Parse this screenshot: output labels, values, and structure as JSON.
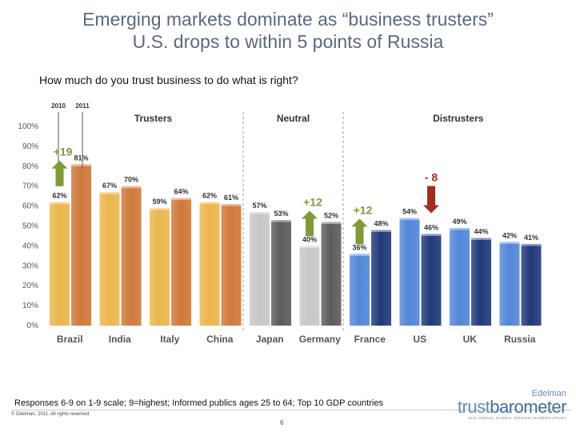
{
  "title": {
    "line1": "Emerging markets dominate as “business trusters”",
    "line2": "U.S. drops to within 5 points of Russia"
  },
  "question": "How much do you trust business to do what is right?",
  "footnote": "Responses 6-9 on 1-9 scale; 9=highest; Informed publics ages 25 to 64; Top 10 GDP countries",
  "copyright": "© Edelman, 2011. All rights reserved.",
  "page_number": "6",
  "logo": {
    "brand": "Edelman",
    "word_part1": "trust",
    "word_part2": "barometer",
    "tagline": "2011 ANNUAL GLOBAL OPINION LEADERS STUDY"
  },
  "colors": {
    "trusters_2010": "#eab64d",
    "trusters_2011": "#d0793a",
    "neutral_2010": "#c7c7c7",
    "neutral_2011": "#5c5c5c",
    "distrusters_2010": "#5187d6",
    "distrusters_2011": "#203a78",
    "change_up": "#7f9a36",
    "change_down": "#a32e1f"
  },
  "chart_data": {
    "type": "bar",
    "title": "How much do you trust business to do what is right?",
    "xlabel": "",
    "ylabel": "",
    "ylim": [
      0,
      100
    ],
    "yticks": [
      "0%",
      "10%",
      "20%",
      "30%",
      "40%",
      "50%",
      "60%",
      "70%",
      "80%",
      "90%",
      "100%"
    ],
    "grid": false,
    "legend": [
      "2010",
      "2011"
    ],
    "categories": [
      "Brazil",
      "India",
      "Italy",
      "China",
      "Japan",
      "Germany",
      "France",
      "US",
      "UK",
      "Russia"
    ],
    "series": [
      {
        "name": "2010",
        "values": [
          62,
          67,
          59,
          62,
          57,
          40,
          36,
          54,
          49,
          42
        ]
      },
      {
        "name": "2011",
        "values": [
          81,
          70,
          64,
          61,
          53,
          52,
          48,
          46,
          44,
          41
        ]
      }
    ],
    "value_labels": {
      "2010": [
        "62%",
        "67%",
        "59%",
        "62%",
        "57%",
        "40%",
        "36%",
        "54%",
        "49%",
        "42%"
      ],
      "2011": [
        "81%",
        "70%",
        "64%",
        "61%",
        "53%",
        "52%",
        "48%",
        "46%",
        "44%",
        "41%"
      ]
    },
    "groups": [
      {
        "name": "Trusters",
        "categories": [
          "Brazil",
          "India",
          "Italy",
          "China"
        ]
      },
      {
        "name": "Neutral",
        "categories": [
          "Japan",
          "Germany"
        ]
      },
      {
        "name": "Distrusters",
        "categories": [
          "France",
          "US",
          "UK",
          "Russia"
        ]
      }
    ],
    "annotations": [
      {
        "category": "Brazil",
        "label": "+19",
        "direction": "up"
      },
      {
        "category": "Germany",
        "label": "+12",
        "direction": "up"
      },
      {
        "category": "France",
        "label": "+12",
        "direction": "up"
      },
      {
        "category": "US",
        "label": "- 8",
        "direction": "down"
      }
    ]
  }
}
